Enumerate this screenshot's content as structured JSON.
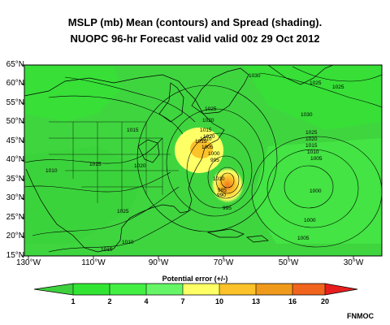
{
  "title_line1": "MSLP (mb) Mean (contours) and Spread (shading).",
  "title_line2": "NUOPC 96-hr Forecast valid valid 00z 29 Oct 2012",
  "lat_labels": [
    "65°N",
    "60°N",
    "55°N",
    "50°N",
    "45°N",
    "40°N",
    "35°N",
    "30°N",
    "25°N",
    "20°N",
    "15°N"
  ],
  "lon_labels": [
    "130°W",
    "110°W",
    "90°W",
    "70°W",
    "50°W",
    "30°W"
  ],
  "contour_labels": [
    "1030",
    "1025",
    "1025",
    "1025",
    "1020",
    "1015",
    "1015",
    "1010",
    "1005",
    "1000",
    "995",
    "990",
    "985",
    "1030",
    "1025",
    "1020",
    "1015",
    "1010",
    "1005",
    "1000",
    "995",
    "1000",
    "1005",
    "1010",
    "1015",
    "1020",
    "1025",
    "1010",
    "1015",
    "1020",
    "1010",
    "1015"
  ],
  "colorbar": {
    "title": "Potential error (+/-)",
    "ticks": [
      "1",
      "2",
      "4",
      "7",
      "10",
      "13",
      "16",
      "20"
    ],
    "colors": [
      "#3ed13e",
      "#33e533",
      "#43ef43",
      "#ffff66",
      "#fcc22a",
      "#f09a1c",
      "#f0641e",
      "#e81e1e"
    ]
  },
  "credit": "FNMOC"
}
